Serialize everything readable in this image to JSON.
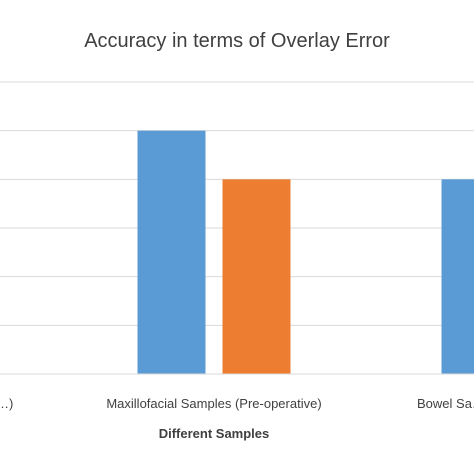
{
  "chart_data": {
    "type": "bar",
    "title": "Accuracy in terms of Overlay Error",
    "xlabel": "Different Samples",
    "ylabel": "",
    "categories": [
      "…)",
      "Maxillofacial Samples (Pre-operative)",
      "Bowel Sa…"
    ],
    "series": [
      {
        "values": [
          null,
          5,
          4
        ],
        "color": "#5B9BD5"
      },
      {
        "values": [
          null,
          4,
          null
        ],
        "color": "#ED7D31"
      }
    ],
    "ylim": [
      0,
      6
    ],
    "grid": true,
    "legend": "none"
  }
}
